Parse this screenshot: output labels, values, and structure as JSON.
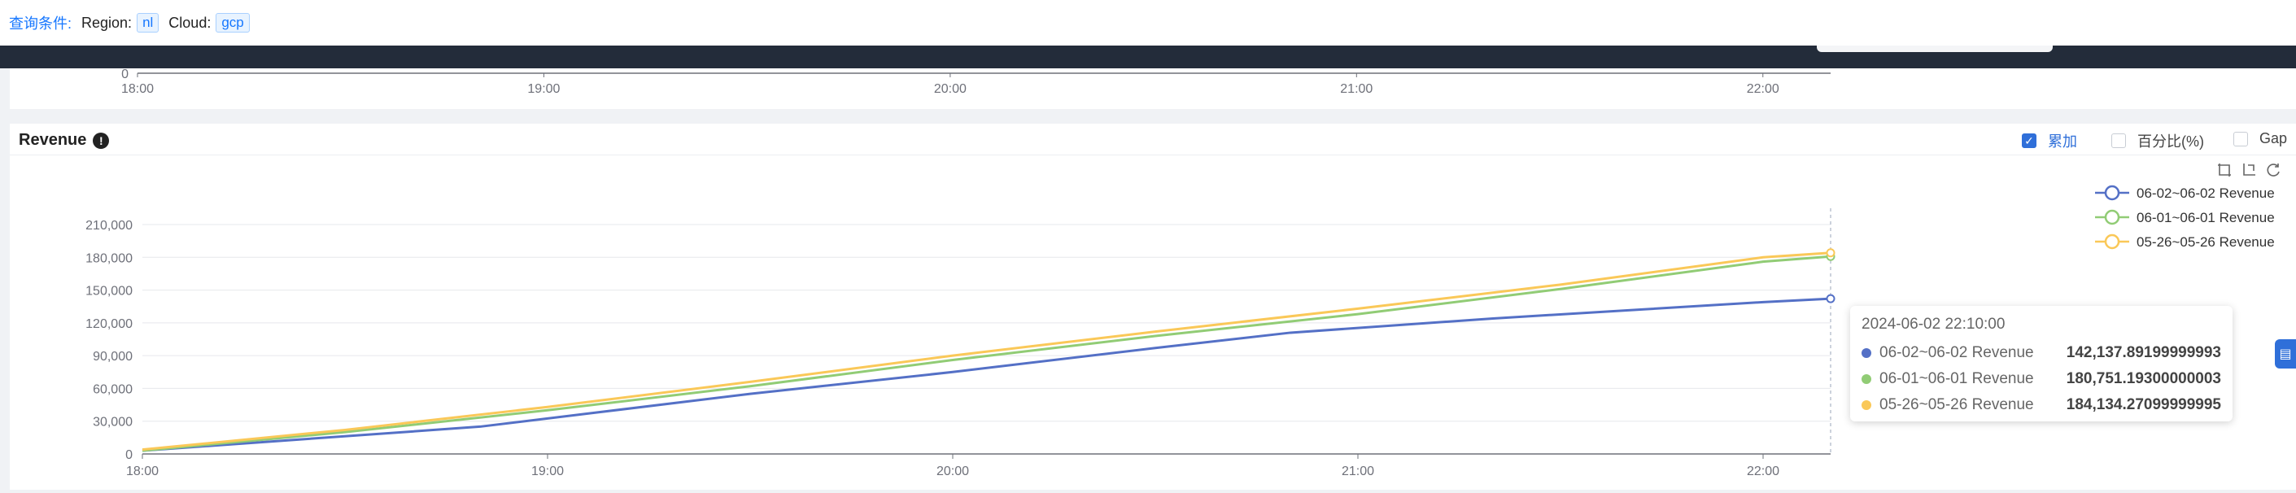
{
  "query": {
    "label": "查询条件:",
    "filters": [
      {
        "name": "Region:",
        "value": "nl"
      },
      {
        "name": "Cloud:",
        "value": "gcp"
      }
    ]
  },
  "upper_chart": {
    "y_tick": "0",
    "x_ticks": [
      "18:00",
      "19:00",
      "20:00",
      "21:00",
      "22:00"
    ]
  },
  "panel": {
    "title": "Revenue",
    "info_icon": "!",
    "options": [
      {
        "label": "累加",
        "checked": true
      },
      {
        "label": "百分比(%)",
        "checked": false
      },
      {
        "label": "Gap",
        "checked": false
      }
    ],
    "toolbox_icons": [
      "zoom-icon",
      "zoom-reset-icon",
      "restore-icon"
    ],
    "side_tab_icon": "table-icon"
  },
  "colors": {
    "series1": "#5470c6",
    "series2": "#91cc75",
    "series3": "#fac858",
    "checked": "#2f6fd9"
  },
  "chart_data": {
    "type": "line",
    "title": "Revenue",
    "x_ticks": [
      "18:00",
      "19:00",
      "20:00",
      "21:00",
      "22:00"
    ],
    "y_ticks": [
      "0",
      "30,000",
      "60,000",
      "90,000",
      "120,000",
      "150,000",
      "180,000",
      "210,000"
    ],
    "ylim": [
      0,
      210000
    ],
    "legend_position": "top-right",
    "series": [
      {
        "name": "06-02~06-02 Revenue",
        "x": [
          "18:00",
          "18:50",
          "19:30",
          "20:00",
          "20:30",
          "20:50",
          "21:20",
          "22:00",
          "22:10"
        ],
        "values": [
          3000,
          25000,
          55000,
          75000,
          97000,
          111000,
          124000,
          139000,
          142137.89
        ]
      },
      {
        "name": "06-01~06-01 Revenue",
        "x": [
          "18:00",
          "18:30",
          "19:00",
          "19:30",
          "20:00",
          "20:30",
          "21:00",
          "21:30",
          "22:00",
          "22:10"
        ],
        "values": [
          3000,
          20000,
          40000,
          62000,
          86000,
          108000,
          128000,
          151000,
          176000,
          180751.19
        ]
      },
      {
        "name": "05-26~05-26 Revenue",
        "x": [
          "18:00",
          "18:30",
          "19:00",
          "19:30",
          "20:00",
          "20:30",
          "21:00",
          "21:30",
          "22:00",
          "22:10"
        ],
        "values": [
          4000,
          22000,
          43000,
          66000,
          90000,
          112000,
          133000,
          155000,
          180000,
          184134.27
        ]
      }
    ]
  },
  "tooltip": {
    "title": "2024-06-02 22:10:00",
    "rows": [
      {
        "name": "06-02~06-02 Revenue",
        "value": "142,137.89199999993"
      },
      {
        "name": "06-01~06-01 Revenue",
        "value": "180,751.19300000003"
      },
      {
        "name": "05-26~05-26 Revenue",
        "value": "184,134.27099999995"
      }
    ]
  }
}
